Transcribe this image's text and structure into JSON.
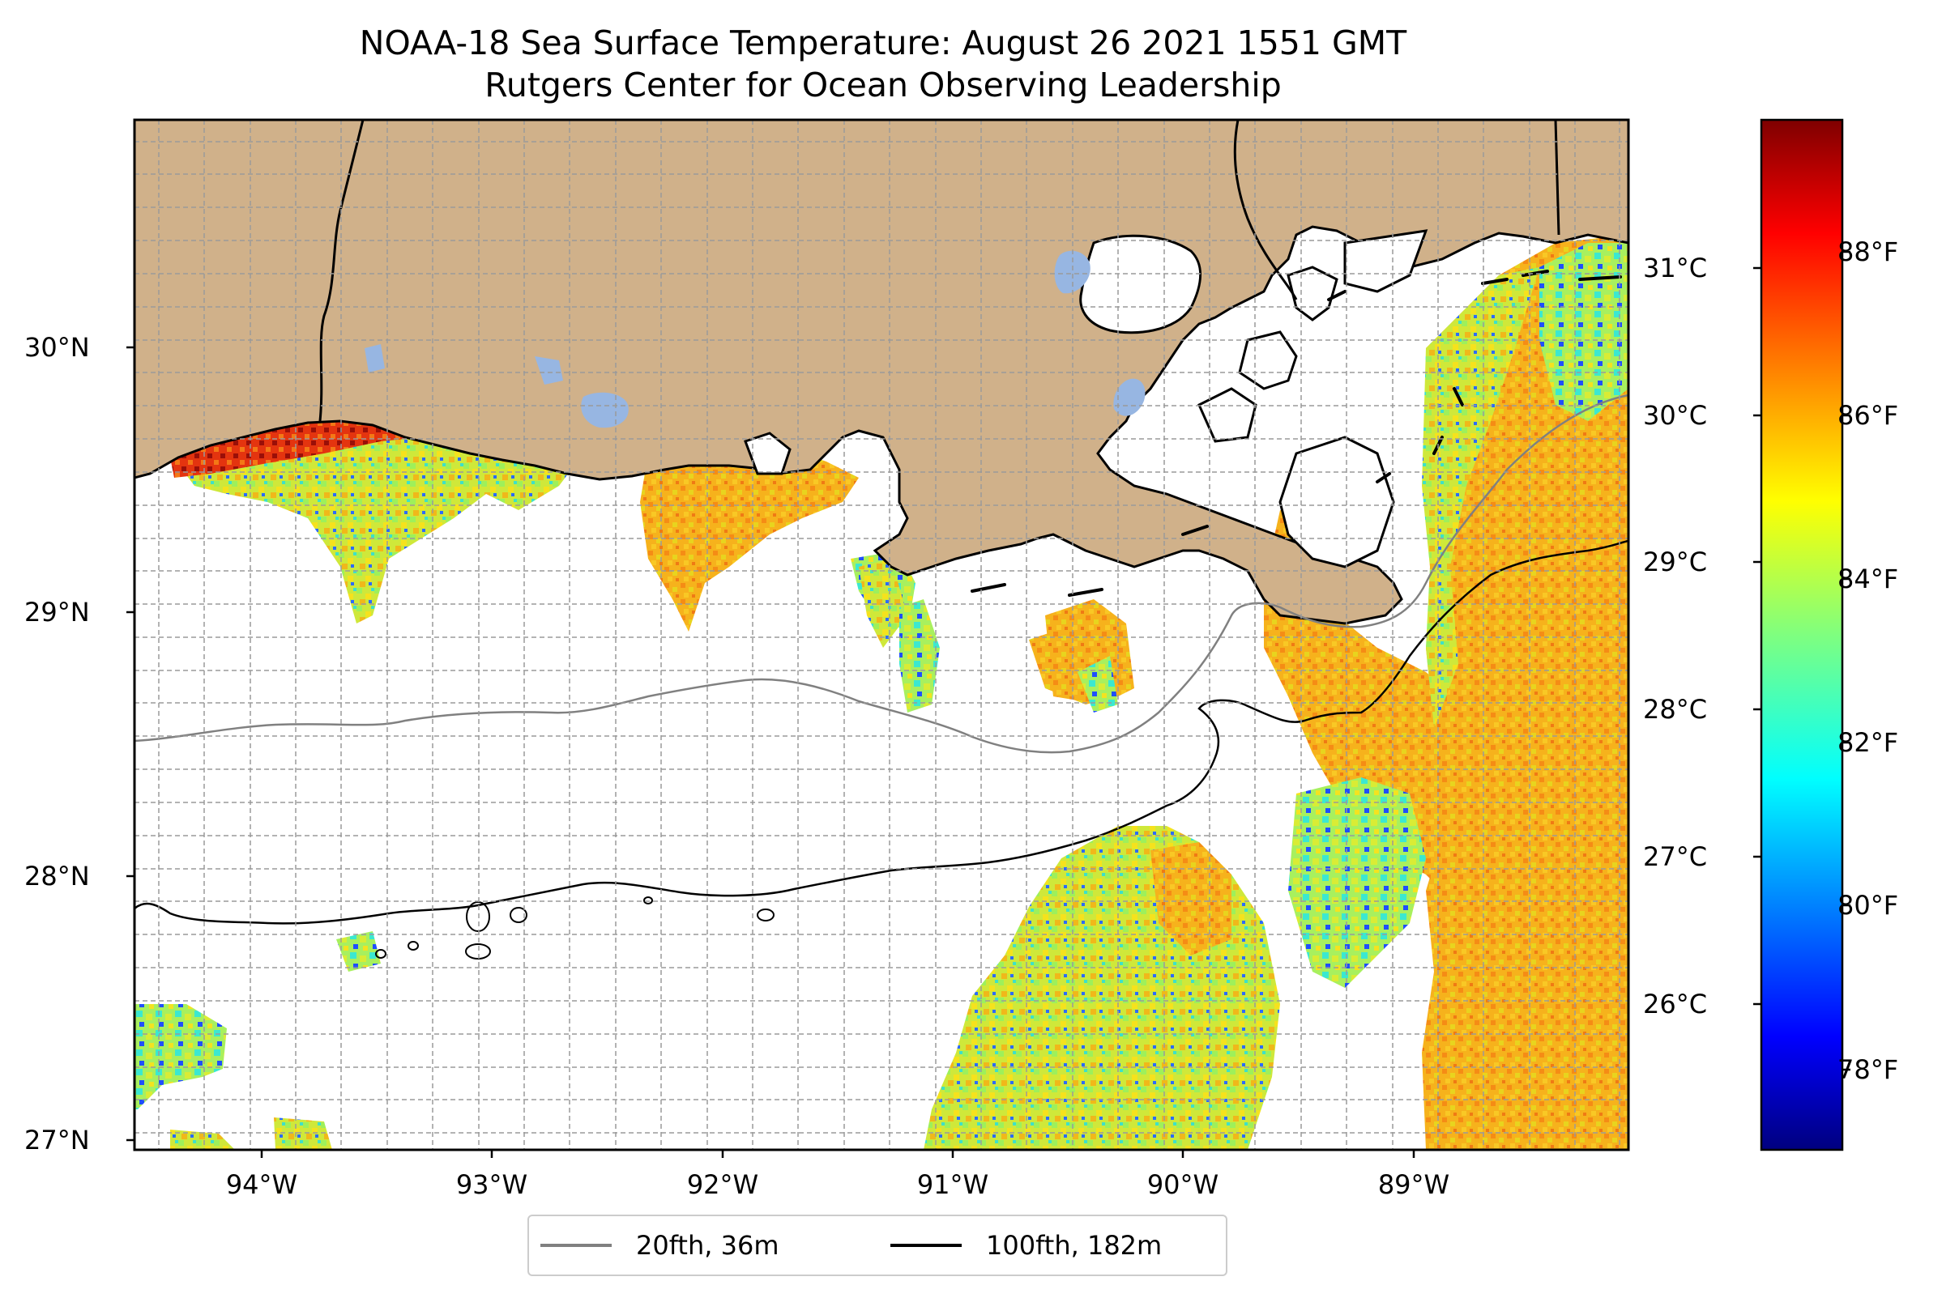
{
  "title": {
    "line1": "NOAA-18 Sea Surface Temperature: August 26 2021 1551 GMT",
    "line2": "Rutgers Center for Ocean Observing Leadership"
  },
  "map": {
    "lat_ticks": [
      "30°N",
      "29°N",
      "28°N",
      "27°N"
    ],
    "lon_ticks": [
      "94°W",
      "93°W",
      "92°W",
      "91°W",
      "90°W",
      "89°W"
    ],
    "extent": {
      "lon": [
        -94.55,
        -88.1
      ],
      "lat": [
        26.93,
        30.84
      ]
    },
    "grid": true,
    "land_color": "#d0b18a",
    "lake_color": "#97b6e2",
    "region": "Louisiana coast, northern Gulf of Mexico"
  },
  "colorbar": {
    "colormap": "jet",
    "celsius_ticks": [
      "31°C",
      "30°C",
      "29°C",
      "28°C",
      "27°C",
      "26°C"
    ],
    "fahrenheit_ticks": [
      "88°F",
      "86°F",
      "84°F",
      "82°F",
      "80°F",
      "78°F"
    ],
    "range_f": [
      77,
      89.8
    ]
  },
  "legend": {
    "items": [
      {
        "label": "20fth, 36m",
        "color": "#808080"
      },
      {
        "label": "100fth, 182m",
        "color": "#000000"
      }
    ]
  }
}
